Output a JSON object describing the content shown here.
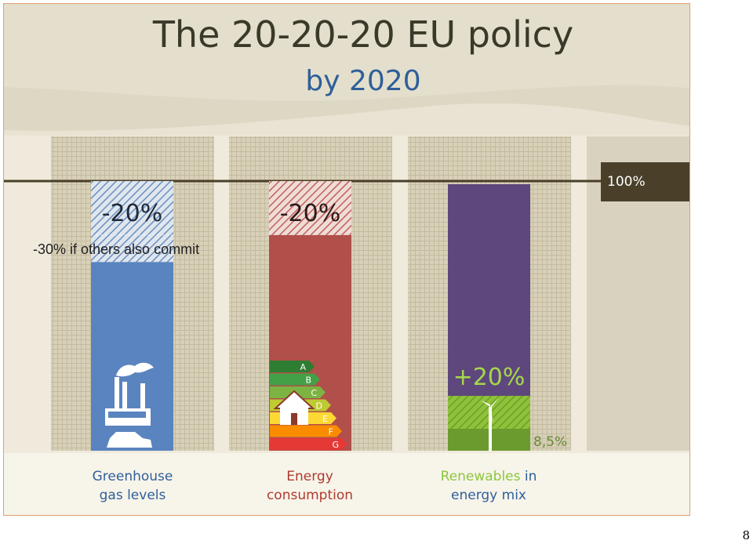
{
  "title": {
    "line1": "The 20-20-20 EU policy",
    "line2": "by 2020"
  },
  "reference_label": "100%",
  "commit_note": "-30% if others also commit",
  "page_number": "8",
  "colors": {
    "greenhouse": "#5a84bf",
    "energy": "#b14f4b",
    "renewables": "#5e477c",
    "renewables_green": "#6b9a2f",
    "label_blue": "#2f5f9a",
    "label_red": "#b03a2e",
    "label_green": "#8cc63f"
  },
  "chart_data": {
    "type": "bar",
    "title": "The 20-20-20 EU policy",
    "subtitle": "by 2020",
    "ylim": [
      0,
      100
    ],
    "reference_line": 100,
    "categories": [
      {
        "label": [
          "Greenhouse",
          "gas levels"
        ],
        "target_label": "-20%",
        "target_change": -20,
        "extended_target": -30,
        "icon": "factory-car-icon"
      },
      {
        "label": [
          "Energy",
          "consumption"
        ],
        "target_label": "-20%",
        "target_change": -20,
        "icon": "energy-rating-house-icon"
      },
      {
        "label_parts": [
          "Renewables",
          " in",
          "energy mix"
        ],
        "target_label": "+20%",
        "target_share": 20,
        "baseline_label": "8,5%",
        "baseline_share": 8.5,
        "icon": "wind-turbine-icon"
      }
    ],
    "energy_classes": [
      "A",
      "B",
      "C",
      "D",
      "E",
      "F",
      "G"
    ]
  }
}
